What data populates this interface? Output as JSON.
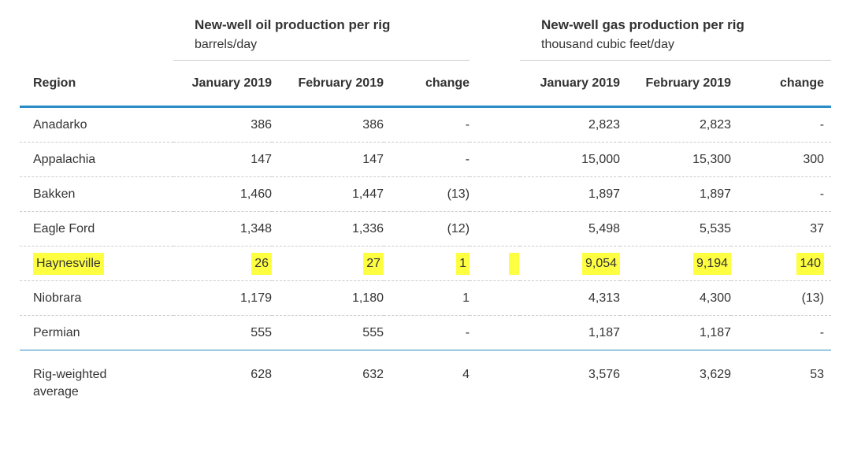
{
  "colors": {
    "accent_blue": "#2a8bc5",
    "highlight_yellow": "#ffff42",
    "rule_gray": "#cccccc",
    "text": "#333333"
  },
  "table": {
    "region_header": "Region",
    "groups": {
      "oil": {
        "title": "New-well oil production per rig",
        "unit": "barrels/day"
      },
      "gas": {
        "title": "New-well gas production per rig",
        "unit": "thousand cubic feet/day"
      }
    },
    "col_headers": {
      "jan": "January 2019",
      "feb": "February 2019",
      "change": "change"
    },
    "rows": [
      {
        "region": "Anadarko",
        "oil": [
          "386",
          "386",
          "-"
        ],
        "gas": [
          "2,823",
          "2,823",
          "-"
        ]
      },
      {
        "region": "Appalachia",
        "oil": [
          "147",
          "147",
          "-"
        ],
        "gas": [
          "15,000",
          "15,300",
          "300"
        ]
      },
      {
        "region": "Bakken",
        "oil": [
          "1,460",
          "1,447",
          "(13)"
        ],
        "gas": [
          "1,897",
          "1,897",
          "-"
        ]
      },
      {
        "region": "Eagle Ford",
        "oil": [
          "1,348",
          "1,336",
          "(12)"
        ],
        "gas": [
          "5,498",
          "5,535",
          "37"
        ]
      },
      {
        "region": "Haynesville",
        "oil": [
          "26",
          "27",
          "1"
        ],
        "gas": [
          "9,054",
          "9,194",
          "140"
        ]
      },
      {
        "region": "Niobrara",
        "oil": [
          "1,179",
          "1,180",
          "1"
        ],
        "gas": [
          "4,313",
          "4,300",
          "(13)"
        ]
      },
      {
        "region": "Permian",
        "oil": [
          "555",
          "555",
          "-"
        ],
        "gas": [
          "1,187",
          "1,187",
          "-"
        ]
      }
    ],
    "summary": {
      "region": "Rig-weighted average",
      "oil": [
        "628",
        "632",
        "4"
      ],
      "gas": [
        "3,576",
        "3,629",
        "53"
      ]
    }
  },
  "chart_data": {
    "type": "table",
    "title": "New-well production per rig, January 2019 vs February 2019",
    "column_groups": [
      {
        "title": "New-well oil production per rig",
        "unit": "barrels/day",
        "columns": [
          "January 2019",
          "February 2019",
          "change"
        ]
      },
      {
        "title": "New-well gas production per rig",
        "unit": "thousand cubic feet/day",
        "columns": [
          "January 2019",
          "February 2019",
          "change"
        ]
      }
    ],
    "rows": [
      {
        "region": "Anadarko",
        "oil_jan": 386,
        "oil_feb": 386,
        "oil_change": 0,
        "gas_jan": 2823,
        "gas_feb": 2823,
        "gas_change": 0,
        "highlighted": false
      },
      {
        "region": "Appalachia",
        "oil_jan": 147,
        "oil_feb": 147,
        "oil_change": 0,
        "gas_jan": 15000,
        "gas_feb": 15300,
        "gas_change": 300,
        "highlighted": false
      },
      {
        "region": "Bakken",
        "oil_jan": 1460,
        "oil_feb": 1447,
        "oil_change": -13,
        "gas_jan": 1897,
        "gas_feb": 1897,
        "gas_change": 0,
        "highlighted": false
      },
      {
        "region": "Eagle Ford",
        "oil_jan": 1348,
        "oil_feb": 1336,
        "oil_change": -12,
        "gas_jan": 5498,
        "gas_feb": 5535,
        "gas_change": 37,
        "highlighted": false
      },
      {
        "region": "Haynesville",
        "oil_jan": 26,
        "oil_feb": 27,
        "oil_change": 1,
        "gas_jan": 9054,
        "gas_feb": 9194,
        "gas_change": 140,
        "highlighted": true
      },
      {
        "region": "Niobrara",
        "oil_jan": 1179,
        "oil_feb": 1180,
        "oil_change": 1,
        "gas_jan": 4313,
        "gas_feb": 4300,
        "gas_change": -13,
        "highlighted": false
      },
      {
        "region": "Permian",
        "oil_jan": 555,
        "oil_feb": 555,
        "oil_change": 0,
        "gas_jan": 1187,
        "gas_feb": 1187,
        "gas_change": 0,
        "highlighted": false
      },
      {
        "region": "Rig-weighted average",
        "oil_jan": 628,
        "oil_feb": 632,
        "oil_change": 4,
        "gas_jan": 3576,
        "gas_feb": 3629,
        "gas_change": 53,
        "highlighted": false
      }
    ]
  }
}
